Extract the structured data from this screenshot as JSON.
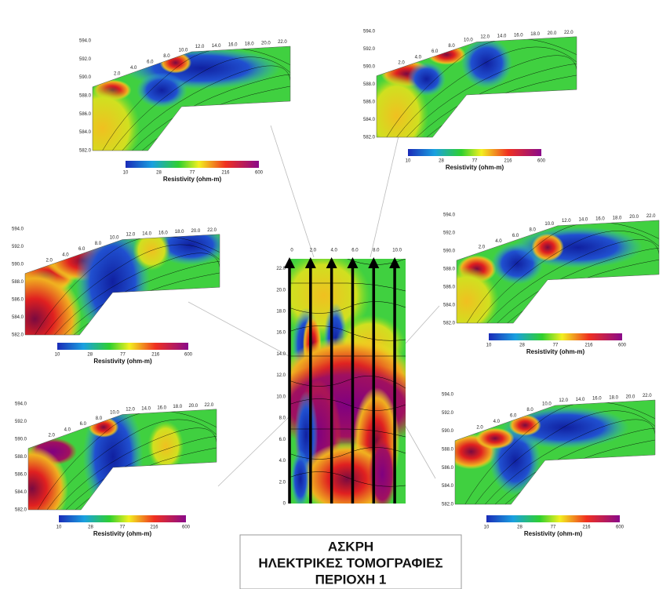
{
  "panel_axes": {
    "distance_ticks": [
      "2.0",
      "4.0",
      "6.0",
      "8.0",
      "10.0",
      "12.0",
      "14.0",
      "16.0",
      "18.0",
      "20.0",
      "22.0"
    ],
    "elevation_ticks": [
      "594.0",
      "592.0",
      "590.0",
      "588.0",
      "586.0",
      "584.0",
      "582.0"
    ]
  },
  "colorbar": {
    "ticks": [
      "10",
      "28",
      "77",
      "216",
      "600"
    ],
    "label": "Resistivity (ohm-m)"
  },
  "map": {
    "x_ticks": [
      "0",
      "2.0",
      "4.0",
      "6.0",
      "8.0",
      "10.0"
    ],
    "y_ticks": [
      "0",
      "2.0",
      "4.0",
      "6.0",
      "8.0",
      "10.0",
      "12.0",
      "14.0",
      "16.0",
      "18.0",
      "20.0",
      "22.0"
    ]
  },
  "title": {
    "lines": [
      "ΑΣΚΡΗ",
      "ΗΛΕΚΤΡΙΚΕΣ ΤΟΜΟΓΡΑΦΙΕΣ",
      "ΠΕΡΙΟΧΗ 1"
    ]
  }
}
